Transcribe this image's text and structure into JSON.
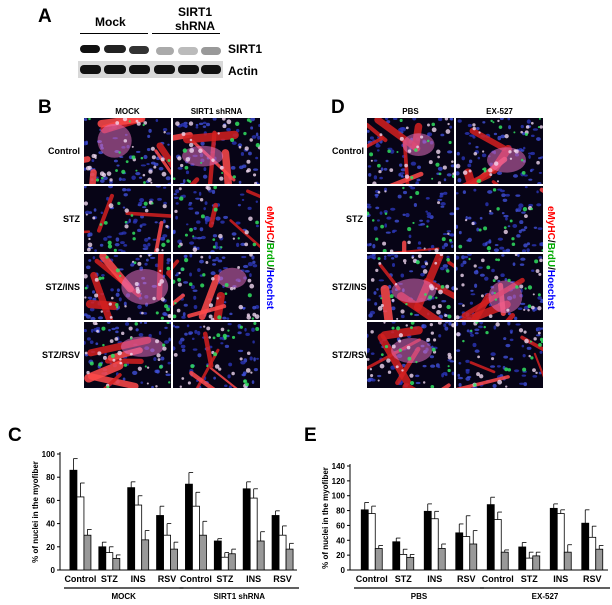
{
  "panel_a": {
    "letter": "A",
    "mock_label": "Mock",
    "shrna_label_line1": "SIRT1",
    "shrna_label_line2": "shRNA",
    "row_sirt1": "SIRT1",
    "row_actin": "Actin"
  },
  "panel_b": {
    "letter": "B",
    "col_labels": [
      "MOCK",
      "SIRT1 shRNA"
    ],
    "row_labels": [
      "Control",
      "STZ",
      "STZ/INS",
      "STZ/RSV"
    ],
    "stain_parts": [
      {
        "text": "eMyHC",
        "color": "#ff0000"
      },
      {
        "text": "/",
        "color": "#000000"
      },
      {
        "text": "BrdU",
        "color": "#00aa00"
      },
      {
        "text": "/",
        "color": "#000000"
      },
      {
        "text": "Hoechst",
        "color": "#0000ff"
      }
    ]
  },
  "panel_d": {
    "letter": "D",
    "col_labels": [
      "PBS",
      "EX-527"
    ],
    "row_labels": [
      "Control",
      "STZ",
      "STZ/INS",
      "STZ/RSV"
    ],
    "stain_parts": [
      {
        "text": "eMyHC",
        "color": "#ff0000"
      },
      {
        "text": "/",
        "color": "#000000"
      },
      {
        "text": "BrdU",
        "color": "#00aa00"
      },
      {
        "text": "/",
        "color": "#000000"
      },
      {
        "text": "Hoechst",
        "color": "#0000ff"
      }
    ]
  },
  "colors": {
    "black_bar": "#000000",
    "white_bar": "#ffffff",
    "gray_bar": "#999999"
  },
  "chart_data": [
    {
      "panel": "C",
      "type": "bar",
      "ylabel": "% of nuclei in the myofiber",
      "ylim": [
        0,
        100
      ],
      "yticks": [
        0,
        20,
        40,
        60,
        80,
        100
      ],
      "categories": [
        "Control",
        "STZ",
        "INS",
        "RSV",
        "Control",
        "STZ",
        "INS",
        "RSV"
      ],
      "groups": [
        {
          "label": "MOCK",
          "span": [
            0,
            3
          ]
        },
        {
          "label": "SIRT1 shRNA",
          "span": [
            4,
            7
          ]
        }
      ],
      "series": [
        {
          "color": "#000000",
          "values": [
            86,
            20,
            71,
            47,
            74,
            25,
            70,
            47
          ],
          "errors": [
            10,
            4,
            5,
            8,
            10,
            2,
            6,
            4
          ]
        },
        {
          "color": "#ffffff",
          "values": [
            63,
            15,
            56,
            30,
            55,
            11,
            62,
            30
          ],
          "errors": [
            12,
            5,
            8,
            10,
            12,
            4,
            8,
            8
          ]
        },
        {
          "color": "#999999",
          "values": [
            30,
            10,
            26,
            18,
            30,
            14,
            25,
            18
          ],
          "errors": [
            5,
            3,
            8,
            6,
            12,
            4,
            8,
            5
          ]
        }
      ]
    },
    {
      "panel": "E",
      "type": "bar",
      "ylabel": "% of nuclei in the myofiber",
      "ylim": [
        0,
        140
      ],
      "yticks": [
        0,
        20,
        40,
        60,
        80,
        100,
        120,
        140
      ],
      "categories": [
        "Control",
        "STZ",
        "INS",
        "RSV",
        "Control",
        "STZ",
        "INS",
        "RSV"
      ],
      "groups": [
        {
          "label": "PBS",
          "span": [
            0,
            3
          ]
        },
        {
          "label": "EX-527",
          "span": [
            4,
            7
          ]
        }
      ],
      "series": [
        {
          "color": "#000000",
          "values": [
            81,
            38,
            79,
            50,
            88,
            31,
            83,
            63
          ],
          "errors": [
            10,
            5,
            10,
            12,
            10,
            6,
            6,
            18
          ]
        },
        {
          "color": "#ffffff",
          "values": [
            76,
            21,
            69,
            45,
            68,
            16,
            76,
            44
          ],
          "errors": [
            10,
            7,
            10,
            28,
            10,
            8,
            5,
            15
          ]
        },
        {
          "color": "#999999",
          "values": [
            29,
            17,
            29,
            35,
            24,
            19,
            24,
            28
          ],
          "errors": [
            4,
            4,
            6,
            18,
            3,
            5,
            10,
            5
          ]
        }
      ]
    }
  ]
}
